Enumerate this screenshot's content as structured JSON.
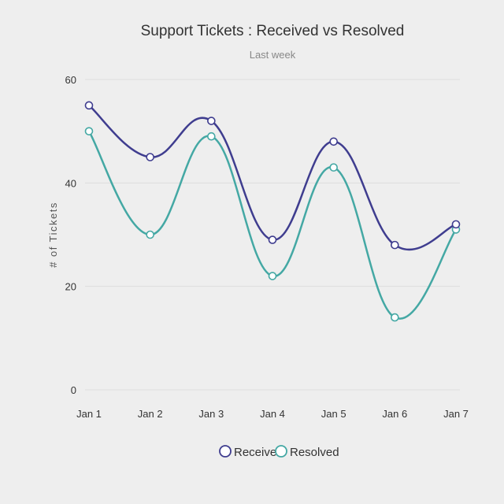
{
  "chart_data": {
    "type": "line",
    "title": "Support Tickets : Received vs Resolved",
    "subtitle": "Last week",
    "xlabel": "",
    "ylabel": "# of Tickets",
    "categories": [
      "Jan 1",
      "Jan 2",
      "Jan 3",
      "Jan 4",
      "Jan 5",
      "Jan 6",
      "Jan 7"
    ],
    "ylim": [
      0,
      60
    ],
    "yticks": [
      0,
      20,
      40,
      60
    ],
    "grid": true,
    "legend_position": "bottom",
    "series": [
      {
        "name": "Received",
        "color": "#3f3d8f",
        "values": [
          55,
          45,
          52,
          29,
          48,
          28,
          32
        ]
      },
      {
        "name": "Resolved",
        "color": "#44a8a4",
        "values": [
          50,
          30,
          49,
          22,
          43,
          14,
          31
        ]
      }
    ]
  }
}
